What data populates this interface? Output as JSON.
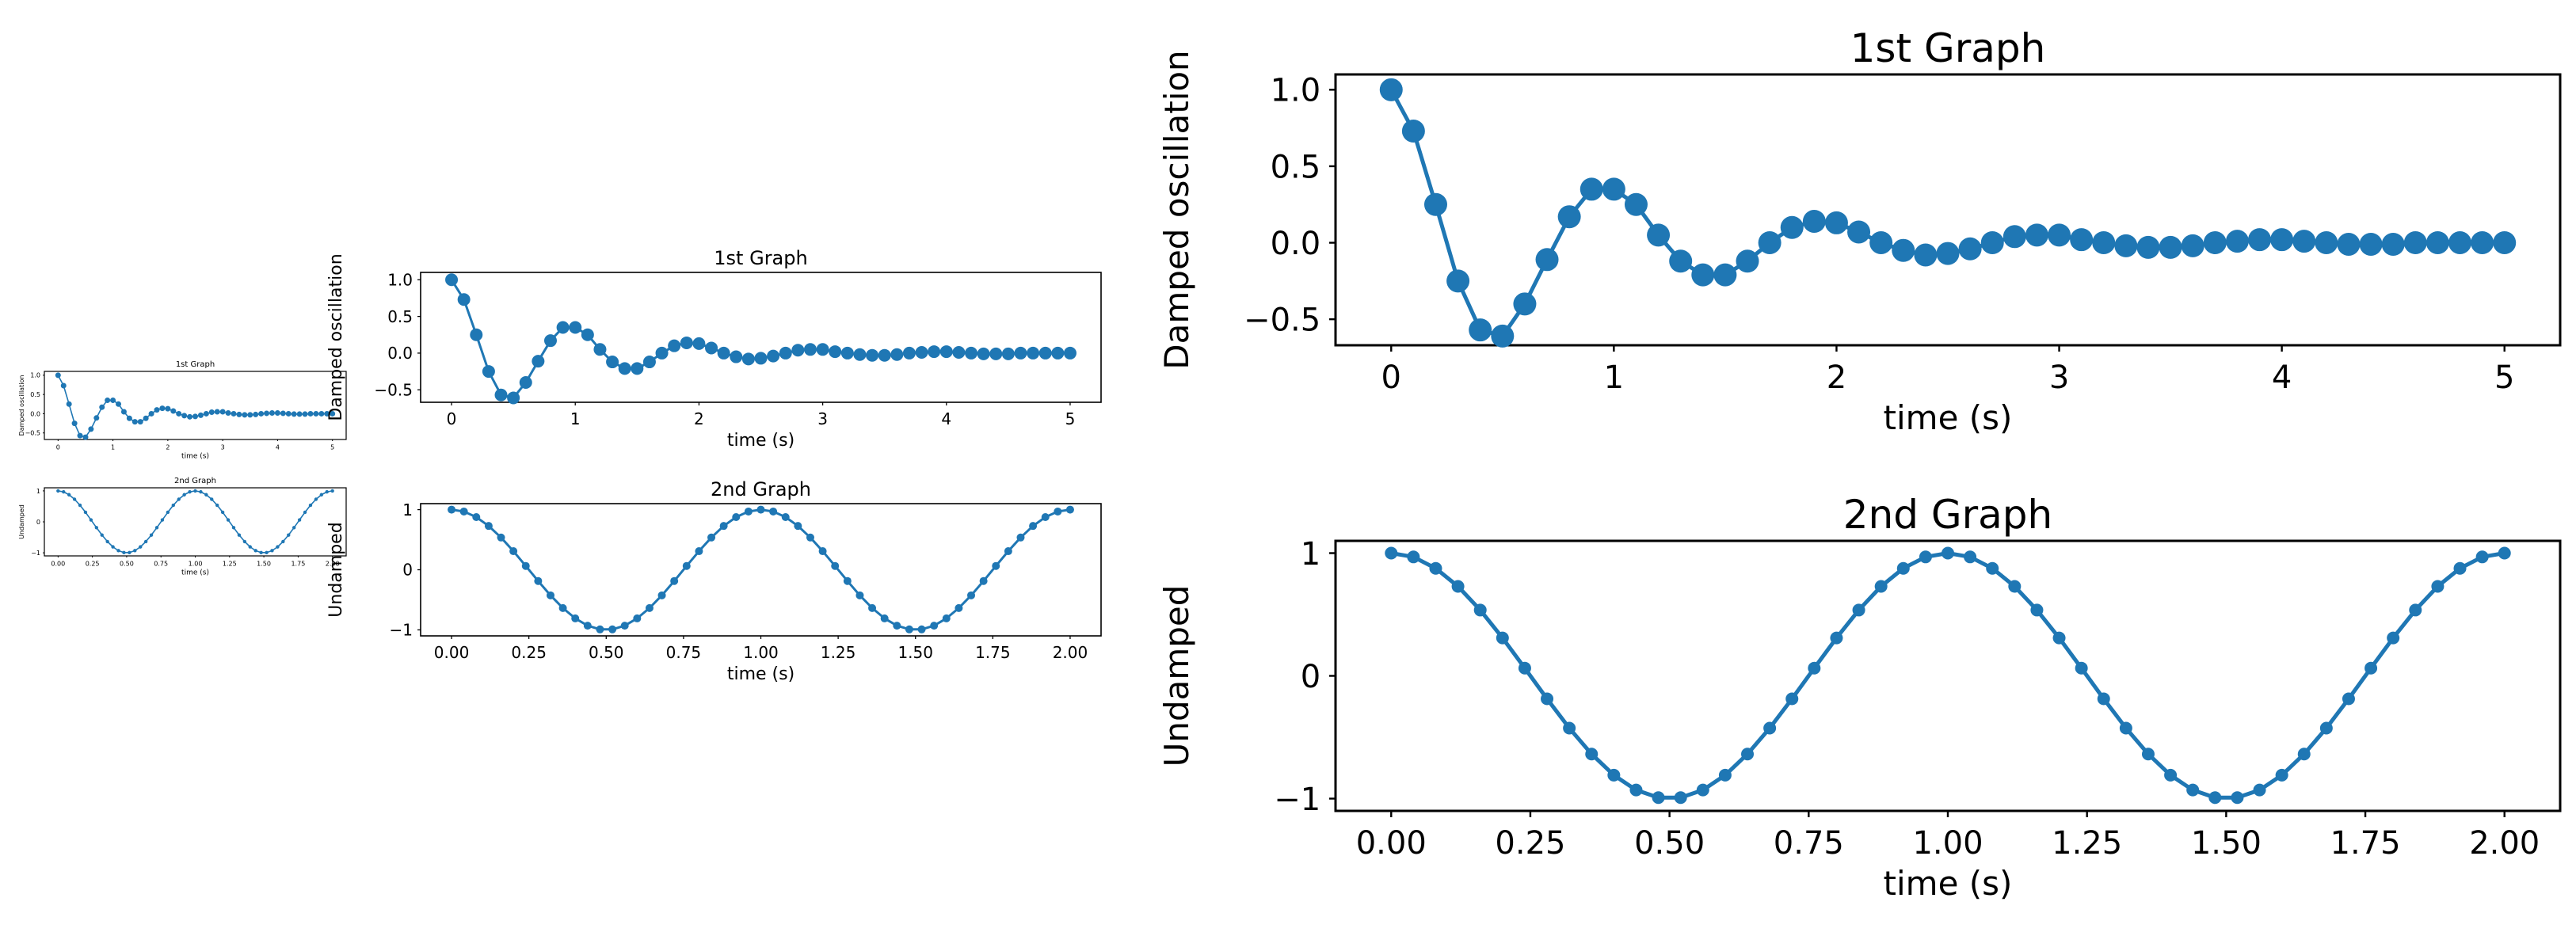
{
  "chart_data": [
    {
      "type": "line",
      "title": "1st Graph",
      "xlabel": "time (s)",
      "ylabel": "Damped oscillation",
      "xlim": [
        -0.25,
        5.25
      ],
      "ylim": [
        -0.67,
        1.1
      ],
      "xticks": [
        0,
        1,
        2,
        3,
        4,
        5
      ],
      "xtick_labels": [
        "0",
        "1",
        "2",
        "3",
        "4",
        "5"
      ],
      "yticks": [
        1.0,
        0.5,
        0.0,
        -0.5
      ],
      "ytick_labels": [
        "1.0",
        "0.5",
        "0.0",
        "−0.5"
      ],
      "marker": "o",
      "color": "#1f77b4",
      "series": [
        {
          "x": [
            0.0,
            0.1,
            0.2,
            0.3,
            0.4,
            0.5,
            0.6,
            0.7,
            0.8,
            0.9,
            1.0,
            1.1,
            1.2,
            1.3,
            1.4,
            1.5,
            1.6,
            1.7,
            1.8,
            1.9,
            2.0,
            2.1,
            2.2,
            2.3,
            2.4,
            2.5,
            2.6,
            2.7,
            2.8,
            2.9,
            3.0,
            3.1,
            3.2,
            3.3,
            3.4,
            3.5,
            3.6,
            3.7,
            3.8,
            3.9,
            4.0,
            4.1,
            4.2,
            4.3,
            4.4,
            4.5,
            4.6,
            4.7,
            4.8,
            4.9,
            5.0
          ],
          "y": [
            1.0,
            0.73,
            0.25,
            -0.25,
            -0.57,
            -0.61,
            -0.4,
            -0.11,
            0.17,
            0.35,
            0.35,
            0.25,
            0.05,
            -0.12,
            -0.21,
            -0.21,
            -0.12,
            0.0,
            0.1,
            0.14,
            0.13,
            0.07,
            0.0,
            -0.05,
            -0.08,
            -0.07,
            -0.04,
            0.0,
            0.04,
            0.05,
            0.05,
            0.02,
            0.0,
            -0.02,
            -0.03,
            -0.03,
            -0.02,
            0.0,
            0.01,
            0.02,
            0.02,
            0.01,
            0.0,
            -0.01,
            -0.01,
            -0.01,
            0.0,
            0.0,
            0.0,
            0.0,
            0.0
          ]
        }
      ]
    },
    {
      "type": "line",
      "title": "2nd Graph",
      "xlabel": "time (s)",
      "ylabel": "Undamped",
      "xlim": [
        -0.1,
        2.1
      ],
      "ylim": [
        -1.1,
        1.1
      ],
      "xticks": [
        0.0,
        0.25,
        0.5,
        0.75,
        1.0,
        1.25,
        1.5,
        1.75,
        2.0
      ],
      "xtick_labels": [
        "0.00",
        "0.25",
        "0.50",
        "0.75",
        "1.00",
        "1.25",
        "1.50",
        "1.75",
        "2.00"
      ],
      "yticks": [
        1,
        0,
        -1
      ],
      "ytick_labels": [
        "1",
        "0",
        "−1"
      ],
      "marker": ".",
      "color": "#1f77b4",
      "series": [
        {
          "x": [
            0.0,
            0.04,
            0.08,
            0.12,
            0.16,
            0.2,
            0.24,
            0.28,
            0.32,
            0.36,
            0.4,
            0.44,
            0.48,
            0.52,
            0.56,
            0.6,
            0.64,
            0.68,
            0.72,
            0.76,
            0.8,
            0.84,
            0.88,
            0.92,
            0.96,
            1.0,
            1.04,
            1.08,
            1.12,
            1.16,
            1.2,
            1.24,
            1.28,
            1.32,
            1.36,
            1.4,
            1.44,
            1.48,
            1.52,
            1.56,
            1.6,
            1.64,
            1.68,
            1.72,
            1.76,
            1.8,
            1.84,
            1.88,
            1.92,
            1.96,
            2.0
          ],
          "y": [
            1.0,
            0.969,
            0.876,
            0.729,
            0.536,
            0.309,
            0.063,
            -0.187,
            -0.426,
            -0.637,
            -0.809,
            -0.93,
            -0.992,
            -0.992,
            -0.93,
            -0.809,
            -0.637,
            -0.426,
            -0.187,
            0.063,
            0.309,
            0.536,
            0.729,
            0.876,
            0.969,
            1.0,
            0.969,
            0.876,
            0.729,
            0.536,
            0.309,
            0.063,
            -0.187,
            -0.426,
            -0.637,
            -0.809,
            -0.93,
            -0.992,
            -0.992,
            -0.93,
            -0.809,
            -0.637,
            -0.426,
            -0.187,
            0.063,
            0.309,
            0.536,
            0.729,
            0.876,
            0.969,
            1.0
          ]
        }
      ]
    }
  ]
}
